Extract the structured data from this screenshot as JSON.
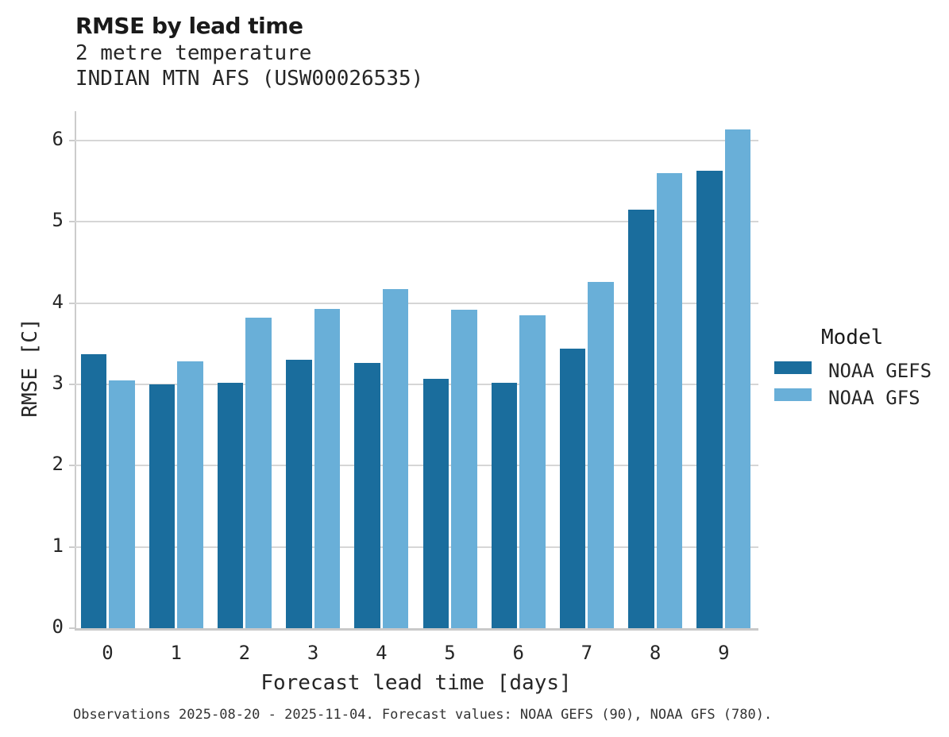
{
  "header": {
    "title": "RMSE by lead time",
    "subtitle_line1": "2 metre temperature",
    "subtitle_line2": "INDIAN MTN AFS (USW00026535)"
  },
  "chart_data": {
    "type": "bar",
    "title": "RMSE by lead time",
    "subtitle": "2 metre temperature",
    "station": "INDIAN MTN AFS (USW00026535)",
    "categories": [
      "0",
      "1",
      "2",
      "3",
      "4",
      "5",
      "6",
      "7",
      "8",
      "9"
    ],
    "series": [
      {
        "name": "NOAA GEFS",
        "color": "#1a6d9d",
        "values": [
          3.37,
          3.0,
          3.02,
          3.3,
          3.26,
          3.07,
          3.02,
          3.44,
          5.15,
          5.63
        ]
      },
      {
        "name": "NOAA GFS",
        "color": "#69afd8",
        "values": [
          3.05,
          3.28,
          3.82,
          3.93,
          4.17,
          3.92,
          3.85,
          4.26,
          5.6,
          6.14
        ]
      }
    ],
    "xlabel": "Forecast lead time [days]",
    "ylabel": "RMSE [C]",
    "ylim": [
      0,
      6.36
    ],
    "yticks": [
      0,
      1,
      2,
      3,
      4,
      5,
      6
    ],
    "grid": true,
    "legend": {
      "title": "Model",
      "position": "right"
    }
  },
  "footer": {
    "note": "Observations 2025-08-20 - 2025-11-04. Forecast values: NOAA GEFS (90), NOAA GFS (780)."
  }
}
